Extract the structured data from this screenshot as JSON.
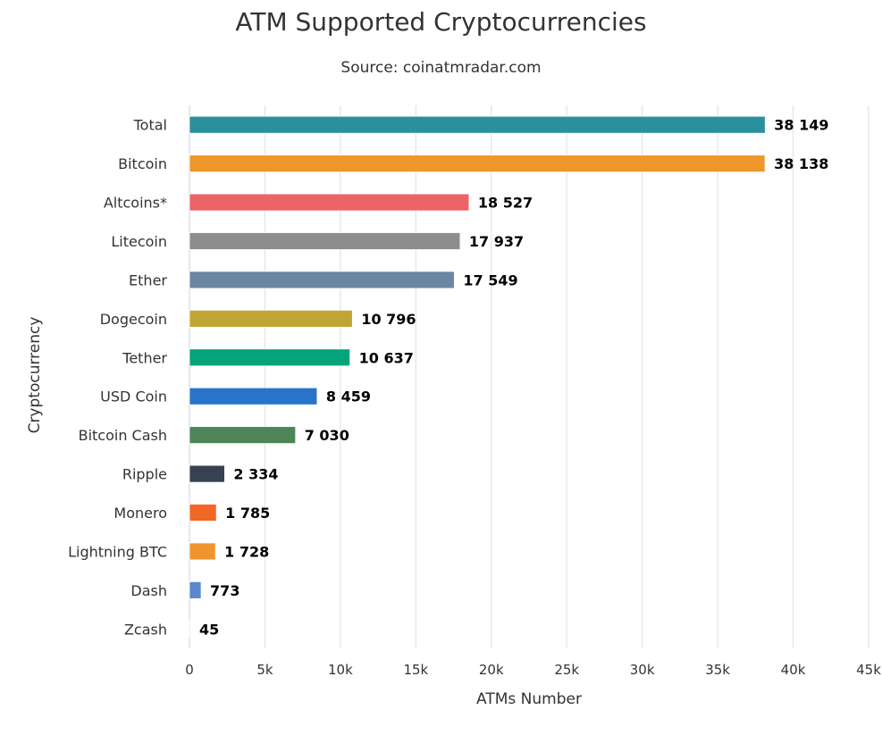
{
  "chart_data": {
    "type": "bar",
    "orientation": "horizontal",
    "title": "ATM Supported Cryptocurrencies",
    "subtitle": "Source: coinatmradar.com",
    "xlabel": "ATMs Number",
    "ylabel": "Cryptocurrency",
    "xlim": [
      0,
      45000
    ],
    "x_ticks": [
      0,
      5000,
      10000,
      15000,
      20000,
      25000,
      30000,
      35000,
      40000,
      45000
    ],
    "x_tick_labels": [
      "0",
      "5k",
      "10k",
      "15k",
      "20k",
      "25k",
      "30k",
      "35k",
      "40k",
      "45k"
    ],
    "grid": "vertical",
    "legend": "none",
    "categories": [
      "Total",
      "Bitcoin",
      "Altcoins*",
      "Litecoin",
      "Ether",
      "Dogecoin",
      "Tether",
      "USD Coin",
      "Bitcoin Cash",
      "Ripple",
      "Monero",
      "Lightning BTC",
      "Dash",
      "Zcash"
    ],
    "values": [
      38149,
      38138,
      18527,
      17937,
      17549,
      10796,
      10637,
      8459,
      7030,
      2334,
      1785,
      1728,
      773,
      45
    ],
    "value_labels": [
      "38 149",
      "38 138",
      "18 527",
      "17 937",
      "17 549",
      "10 796",
      "10 637",
      "8 459",
      "7 030",
      "2 334",
      "1 785",
      "1 728",
      "773",
      "45"
    ],
    "colors": [
      "#2a919c",
      "#ef962c",
      "#ec6468",
      "#8d8d8d",
      "#6a86a3",
      "#bfa533",
      "#04a37a",
      "#2874cd",
      "#4e8558",
      "#374150",
      "#f26723",
      "#f0952d",
      "#5b87cd",
      "#a5bcd8"
    ]
  }
}
